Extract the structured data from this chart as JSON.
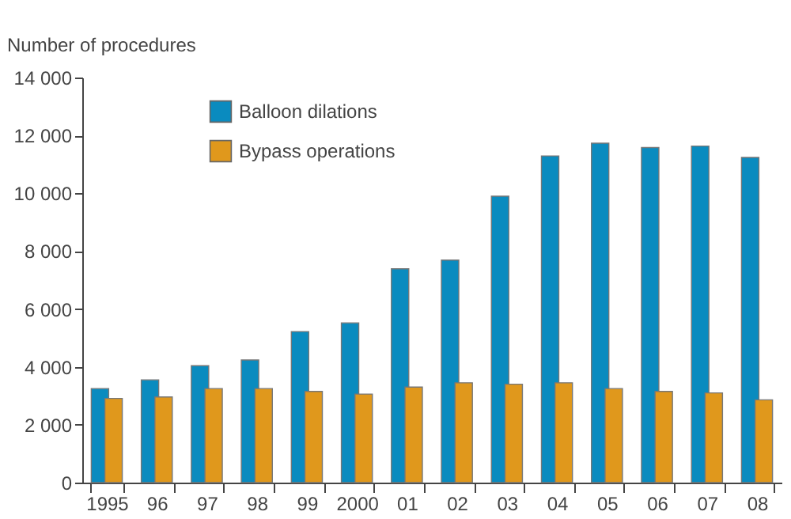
{
  "chart_data": {
    "type": "bar",
    "ylabel": "Number of procedures",
    "categories": [
      "1995",
      "96",
      "97",
      "98",
      "99",
      "2000",
      "01",
      "02",
      "03",
      "04",
      "05",
      "06",
      "07",
      "08"
    ],
    "series": [
      {
        "name": "Balloon dilations",
        "color": "#0a8bbf",
        "values": [
          3250,
          3550,
          4040,
          4240,
          5220,
          5520,
          7390,
          7690,
          9900,
          11290,
          11730,
          11580,
          11630,
          11240
        ]
      },
      {
        "name": "Bypass operations",
        "color": "#e0981c",
        "values": [
          2910,
          2960,
          3250,
          3250,
          3150,
          3060,
          3300,
          3450,
          3400,
          3450,
          3250,
          3150,
          3100,
          2860
        ]
      }
    ],
    "ylim": [
      0,
      14000
    ],
    "yticks": [
      0,
      {
        "value": 2000,
        "label": "2 000"
      },
      {
        "value": 4000,
        "label": "4 000"
      },
      {
        "value": 6000,
        "label": "6 000"
      },
      {
        "value": 8000,
        "label": "8 000"
      },
      {
        "value": 10000,
        "label": "10 000"
      },
      {
        "value": 12000,
        "label": "12 000"
      },
      {
        "value": 14000,
        "label": "14 000"
      }
    ],
    "grid": false,
    "legend": "top left"
  }
}
